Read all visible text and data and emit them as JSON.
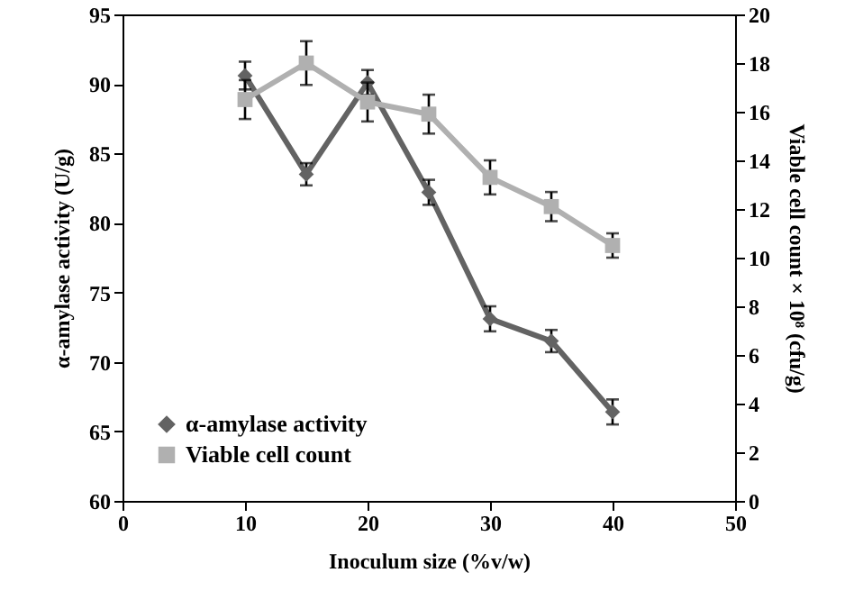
{
  "chart_data": {
    "type": "line",
    "xlabel": "Inoculum size (%v/w)",
    "ylabel": "α-amylase activity (U/g)",
    "y2label": "Viable cell count × 10⁸ (cfu/g)",
    "x": [
      10,
      15,
      20,
      25,
      30,
      35,
      40
    ],
    "xlim": [
      0,
      50
    ],
    "xticks": [
      0,
      10,
      20,
      30,
      40,
      50
    ],
    "ylim": [
      60,
      95
    ],
    "yticks": [
      60,
      65,
      70,
      75,
      80,
      85,
      90,
      95
    ],
    "y2lim": [
      0,
      20
    ],
    "y2ticks": [
      0,
      2,
      4,
      6,
      8,
      10,
      12,
      14,
      16,
      18,
      20
    ],
    "legend": "bottom left",
    "grid": false,
    "series": [
      {
        "name": "α-amylase activity",
        "color": "#636363",
        "marker": "diamond",
        "values": [
          90.6,
          83.5,
          90.1,
          82.2,
          73.1,
          71.5,
          66.4
        ],
        "errors": [
          1.0,
          0.8,
          0.9,
          0.9,
          0.9,
          0.8,
          0.9
        ]
      },
      {
        "name": "Viable cell count",
        "color": "#b0b0b0",
        "marker": "square",
        "axis": "y2",
        "values": [
          16.5,
          18.0,
          16.4,
          15.9,
          13.3,
          12.1,
          10.5
        ],
        "errors": [
          0.8,
          0.9,
          0.8,
          0.8,
          0.7,
          0.6,
          0.5
        ]
      }
    ]
  }
}
